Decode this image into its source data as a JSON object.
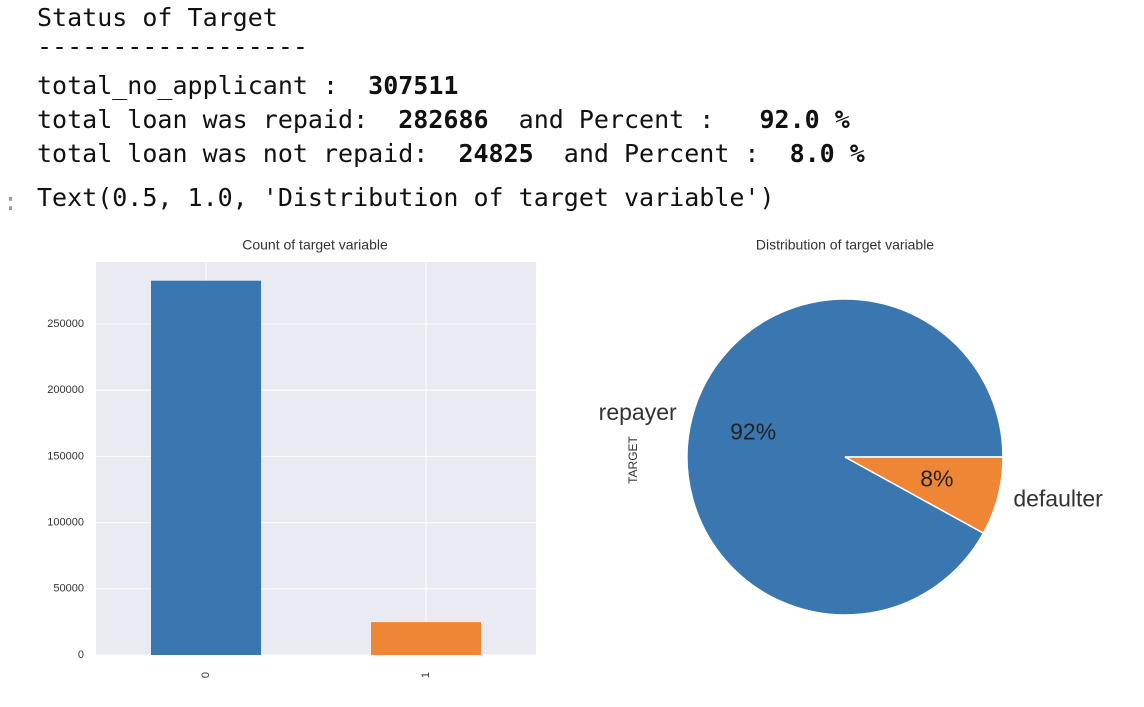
{
  "output": {
    "lines": [
      [
        {
          "text": "Status of Target",
          "bold": false
        }
      ],
      [
        {
          "text": "------------------",
          "bold": false
        }
      ],
      [
        {
          "text": "total_no_applicant :  ",
          "bold": false
        },
        {
          "text": 307511,
          "bold": true
        }
      ],
      [
        {
          "text": "total loan was repaid:  ",
          "bold": false
        },
        {
          "text": 282686,
          "bold": true
        },
        {
          "text": "  and Percent :   ",
          "bold": false
        },
        {
          "text": "92.0 %",
          "bold": true
        }
      ],
      [
        {
          "text": "total loan was not repaid:  ",
          "bold": false
        },
        {
          "text": 24825,
          "bold": true
        },
        {
          "text": "  and Percent :  ",
          "bold": false
        },
        {
          "text": "8.0 %",
          "bold": true
        }
      ]
    ],
    "prompt": ":",
    "result": "Text(0.5, 1.0, 'Distribution of target variable')"
  },
  "chart_data": [
    {
      "type": "bar",
      "title": "Count of target variable",
      "categories": [
        "0",
        "1"
      ],
      "values": [
        282686,
        24825
      ],
      "colors": [
        "#3a76af",
        "#ef8636"
      ],
      "ylim": [
        0,
        296820
      ],
      "yticks": [
        0,
        50000,
        100000,
        150000,
        200000,
        250000
      ],
      "grid": true
    },
    {
      "type": "pie",
      "title": "Distribution of target variable",
      "ylabel": "TARGET",
      "categories": [
        "repayer",
        "defaulter"
      ],
      "values": [
        92,
        8
      ],
      "value_labels": [
        "92%",
        "8%"
      ],
      "colors": [
        "#3a76af",
        "#ef8636"
      ],
      "startangle": 0
    }
  ]
}
